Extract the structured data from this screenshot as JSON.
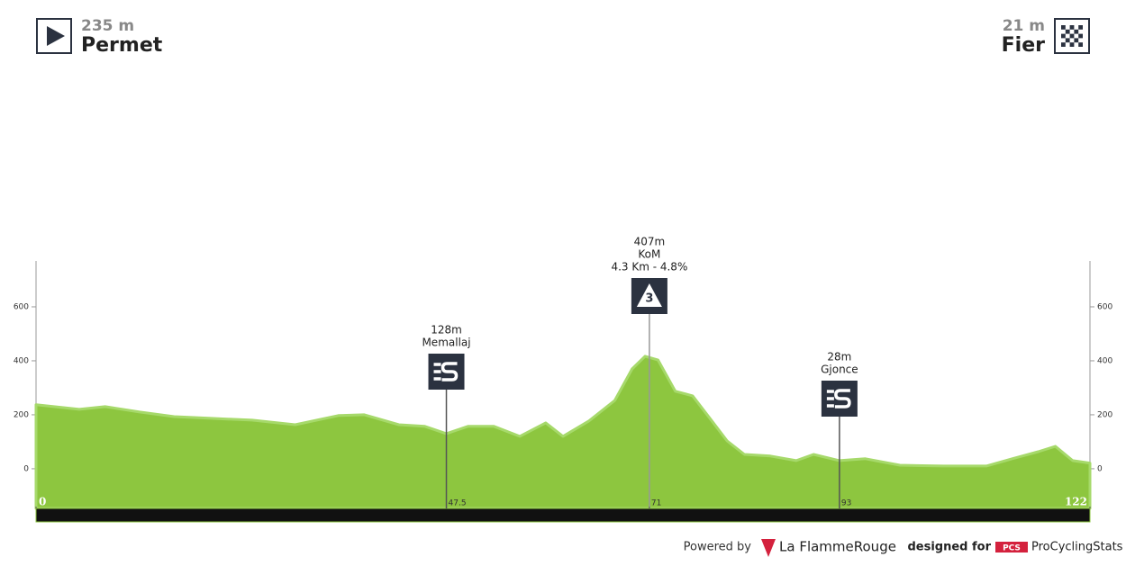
{
  "start": {
    "elevation": "235 m",
    "name": "Permet"
  },
  "finish": {
    "elevation": "21 m",
    "name": "Fier"
  },
  "chart_data": {
    "type": "area",
    "x": [
      0,
      5,
      8,
      12,
      16,
      20,
      25,
      30,
      35,
      38,
      42,
      45,
      47.5,
      50,
      53,
      56,
      59,
      61,
      64,
      67,
      69,
      70.5,
      72,
      74,
      76,
      78,
      80,
      82,
      85,
      88,
      90,
      93,
      96,
      100,
      105,
      110,
      113,
      116,
      118,
      120,
      122
    ],
    "values": [
      237,
      220,
      230,
      210,
      193,
      187,
      180,
      163,
      197,
      200,
      163,
      157,
      130,
      157,
      157,
      120,
      170,
      120,
      177,
      253,
      370,
      417,
      403,
      287,
      270,
      187,
      103,
      53,
      47,
      30,
      53,
      30,
      37,
      13,
      10,
      10,
      37,
      63,
      83,
      30,
      21
    ],
    "color": "#8dc63f",
    "xlim": [
      0,
      122
    ],
    "xticks": [
      0,
      47.5,
      71,
      93,
      122
    ],
    "ylim": [
      -147,
      770
    ],
    "yticks": [
      0,
      200,
      400,
      600
    ],
    "annotations": [
      {
        "kind": "sprint",
        "x": 47.5,
        "lines": [
          "128m",
          "Memallaj"
        ]
      },
      {
        "kind": "kom",
        "x": 71,
        "lines": [
          "407m",
          "KoM",
          "4.3 Km - 4.8%"
        ],
        "category": "3"
      },
      {
        "kind": "sprint",
        "x": 93,
        "lines": [
          "28m",
          "Gjonce"
        ]
      }
    ]
  },
  "footer": {
    "powered": "Powered by",
    "brand": "La FlammeRouge",
    "designed": "designed for",
    "pcs": "PCS",
    "site": "ProCyclingStats"
  }
}
